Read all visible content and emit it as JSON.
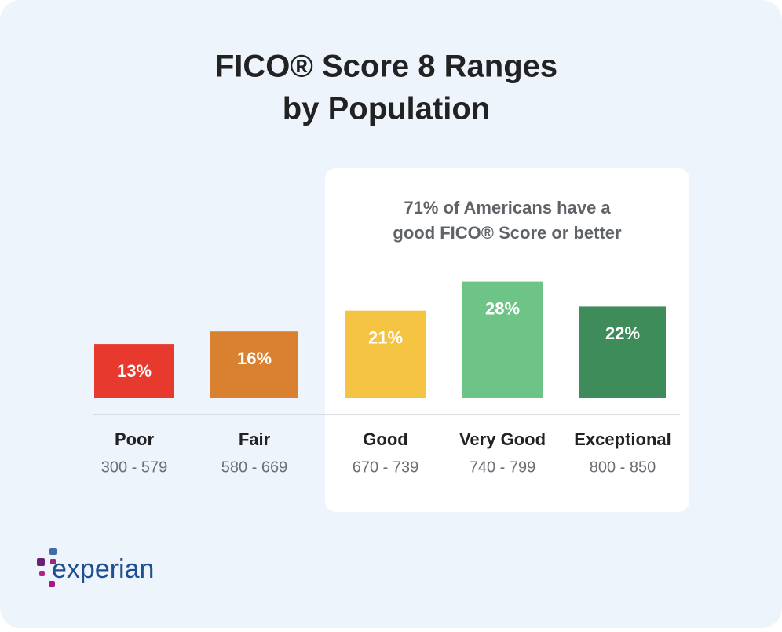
{
  "chart_data": {
    "type": "bar",
    "title": [
      "FICO® Score 8 Ranges",
      "by Population"
    ],
    "annotation": [
      "71% of Americans have a",
      "good FICO® Score or better"
    ],
    "categories": [
      "Poor",
      "Fair",
      "Good",
      "Very Good",
      "Exceptional"
    ],
    "ranges": [
      "300 - 579",
      "580 - 669",
      "670 - 739",
      "740 - 799",
      "800 - 850"
    ],
    "values": [
      13,
      16,
      21,
      28,
      22
    ],
    "value_labels": [
      "13%",
      "16%",
      "21%",
      "28%",
      "22%"
    ],
    "colors": [
      "#e8392f",
      "#d98130",
      "#f4c342",
      "#6ec487",
      "#3e8c5a"
    ]
  },
  "logo": "experian"
}
